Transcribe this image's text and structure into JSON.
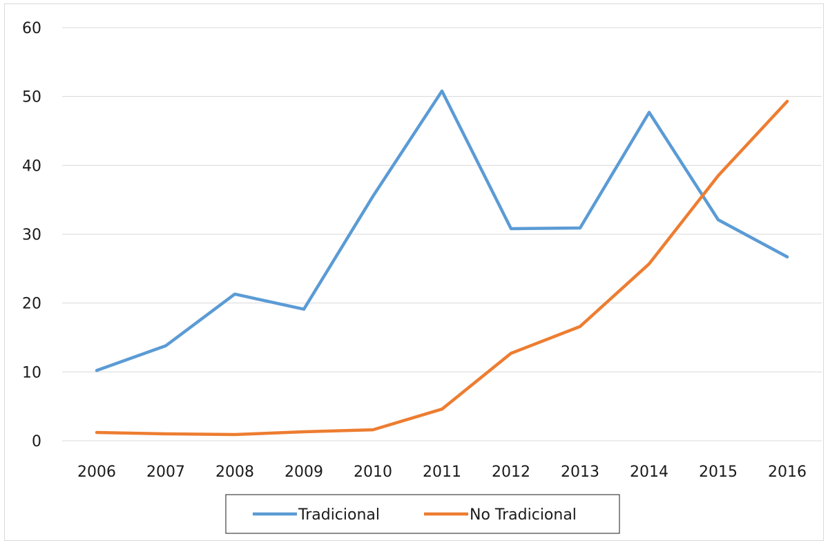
{
  "chart_data": {
    "type": "line",
    "categories": [
      "2006",
      "2007",
      "2008",
      "2009",
      "2010",
      "2011",
      "2012",
      "2013",
      "2014",
      "2015",
      "2016"
    ],
    "series": [
      {
        "name": "Tradicional",
        "color": "#5b9bd5",
        "values": [
          10.2,
          13.8,
          21.3,
          19.1,
          35.5,
          50.8,
          30.8,
          30.9,
          47.7,
          32.1,
          26.7
        ]
      },
      {
        "name": "No Tradicional",
        "color": "#ed7d31",
        "values": [
          1.2,
          1.0,
          0.9,
          1.3,
          1.6,
          4.6,
          12.7,
          16.6,
          25.7,
          38.5,
          49.3
        ]
      }
    ],
    "ylim": [
      0,
      60
    ],
    "yticks": [
      0,
      10,
      20,
      30,
      40,
      50,
      60
    ],
    "title": "",
    "xlabel": "",
    "ylabel": "",
    "grid": true,
    "legend_position": "bottom"
  }
}
